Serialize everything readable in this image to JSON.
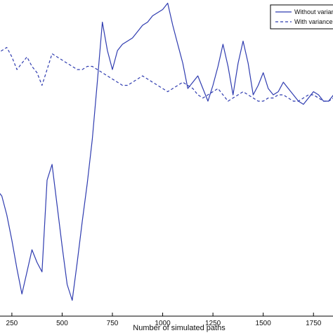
{
  "chart_data": {
    "type": "line",
    "title": "",
    "xlabel": "Number of simulated paths",
    "ylabel": "",
    "xlim": [
      170,
      1875
    ],
    "ylim": [
      0,
      1
    ],
    "x_ticks": [
      250,
      500,
      750,
      1000,
      1250,
      1500,
      1750
    ],
    "x_tick_labels": [
      "250",
      "500",
      "750",
      "1000",
      "1250",
      "1500",
      "1750"
    ],
    "y_ticks_visible": false,
    "grid": false,
    "legend": {
      "placement": "top-right",
      "entries": [
        "Without variance r",
        "With variance r"
      ]
    },
    "series": [
      {
        "name": "Without variance r",
        "color": "#2f3cb0",
        "dash": "solid",
        "x": [
          175,
          200,
          225,
          250,
          275,
          300,
          325,
          350,
          375,
          400,
          425,
          450,
          475,
          500,
          525,
          550,
          575,
          600,
          625,
          650,
          675,
          700,
          725,
          750,
          775,
          800,
          825,
          850,
          875,
          900,
          925,
          950,
          975,
          1000,
          1025,
          1050,
          1075,
          1100,
          1125,
          1150,
          1175,
          1200,
          1225,
          1250,
          1275,
          1300,
          1325,
          1350,
          1375,
          1400,
          1425,
          1450,
          1475,
          1500,
          1525,
          1550,
          1575,
          1600,
          1625,
          1650,
          1675,
          1700,
          1725,
          1750,
          1775,
          1800,
          1825,
          1850,
          1875
        ],
        "y": [
          0.4,
          0.38,
          0.32,
          0.24,
          0.15,
          0.07,
          0.14,
          0.21,
          0.17,
          0.14,
          0.43,
          0.48,
          0.35,
          0.22,
          0.1,
          0.05,
          0.17,
          0.3,
          0.42,
          0.56,
          0.74,
          0.93,
          0.84,
          0.78,
          0.84,
          0.86,
          0.87,
          0.88,
          0.9,
          0.92,
          0.93,
          0.95,
          0.96,
          0.97,
          0.99,
          0.92,
          0.86,
          0.8,
          0.72,
          0.74,
          0.76,
          0.72,
          0.68,
          0.73,
          0.79,
          0.86,
          0.79,
          0.7,
          0.8,
          0.87,
          0.8,
          0.7,
          0.73,
          0.77,
          0.72,
          0.7,
          0.71,
          0.74,
          0.72,
          0.7,
          0.68,
          0.67,
          0.69,
          0.71,
          0.7,
          0.68,
          0.68,
          0.7,
          0.68
        ]
      },
      {
        "name": "With variance r",
        "color": "#2f3cb0",
        "dash": "dashed",
        "x": [
          175,
          200,
          225,
          250,
          275,
          300,
          325,
          350,
          375,
          400,
          425,
          450,
          475,
          500,
          525,
          550,
          575,
          600,
          625,
          650,
          675,
          700,
          725,
          750,
          775,
          800,
          825,
          850,
          875,
          900,
          925,
          950,
          975,
          1000,
          1025,
          1050,
          1075,
          1100,
          1125,
          1150,
          1175,
          1200,
          1225,
          1250,
          1275,
          1300,
          1325,
          1350,
          1375,
          1400,
          1425,
          1450,
          1475,
          1500,
          1525,
          1550,
          1575,
          1600,
          1625,
          1650,
          1675,
          1700,
          1725,
          1750,
          1775,
          1800,
          1825,
          1850,
          1875
        ],
        "y": [
          0.83,
          0.84,
          0.85,
          0.82,
          0.78,
          0.8,
          0.82,
          0.79,
          0.77,
          0.73,
          0.78,
          0.83,
          0.82,
          0.81,
          0.8,
          0.79,
          0.78,
          0.78,
          0.79,
          0.79,
          0.78,
          0.77,
          0.76,
          0.75,
          0.74,
          0.73,
          0.73,
          0.74,
          0.75,
          0.76,
          0.75,
          0.74,
          0.73,
          0.72,
          0.71,
          0.72,
          0.73,
          0.74,
          0.73,
          0.72,
          0.7,
          0.69,
          0.7,
          0.71,
          0.72,
          0.7,
          0.68,
          0.69,
          0.7,
          0.71,
          0.7,
          0.69,
          0.68,
          0.68,
          0.69,
          0.69,
          0.7,
          0.7,
          0.69,
          0.68,
          0.68,
          0.69,
          0.7,
          0.7,
          0.69,
          0.68,
          0.68,
          0.69,
          0.68
        ]
      }
    ]
  }
}
